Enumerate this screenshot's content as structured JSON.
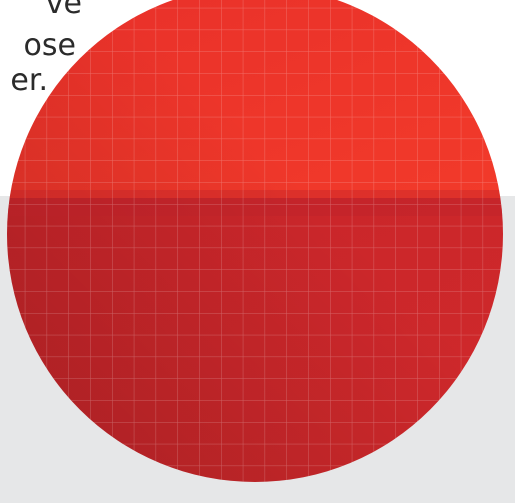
{
  "text_fragment": {
    "lines": [
      "ve",
      "ose",
      "er."
    ]
  },
  "colors": {
    "circle_top": "#ee3125",
    "circle_bottom": "#b82026",
    "panel": "#e6e7e8",
    "text": "#2b2b2b",
    "grid_lines": "#ffffff"
  },
  "graphic": {
    "name": "red-grid-circle",
    "pattern": "square grid"
  }
}
